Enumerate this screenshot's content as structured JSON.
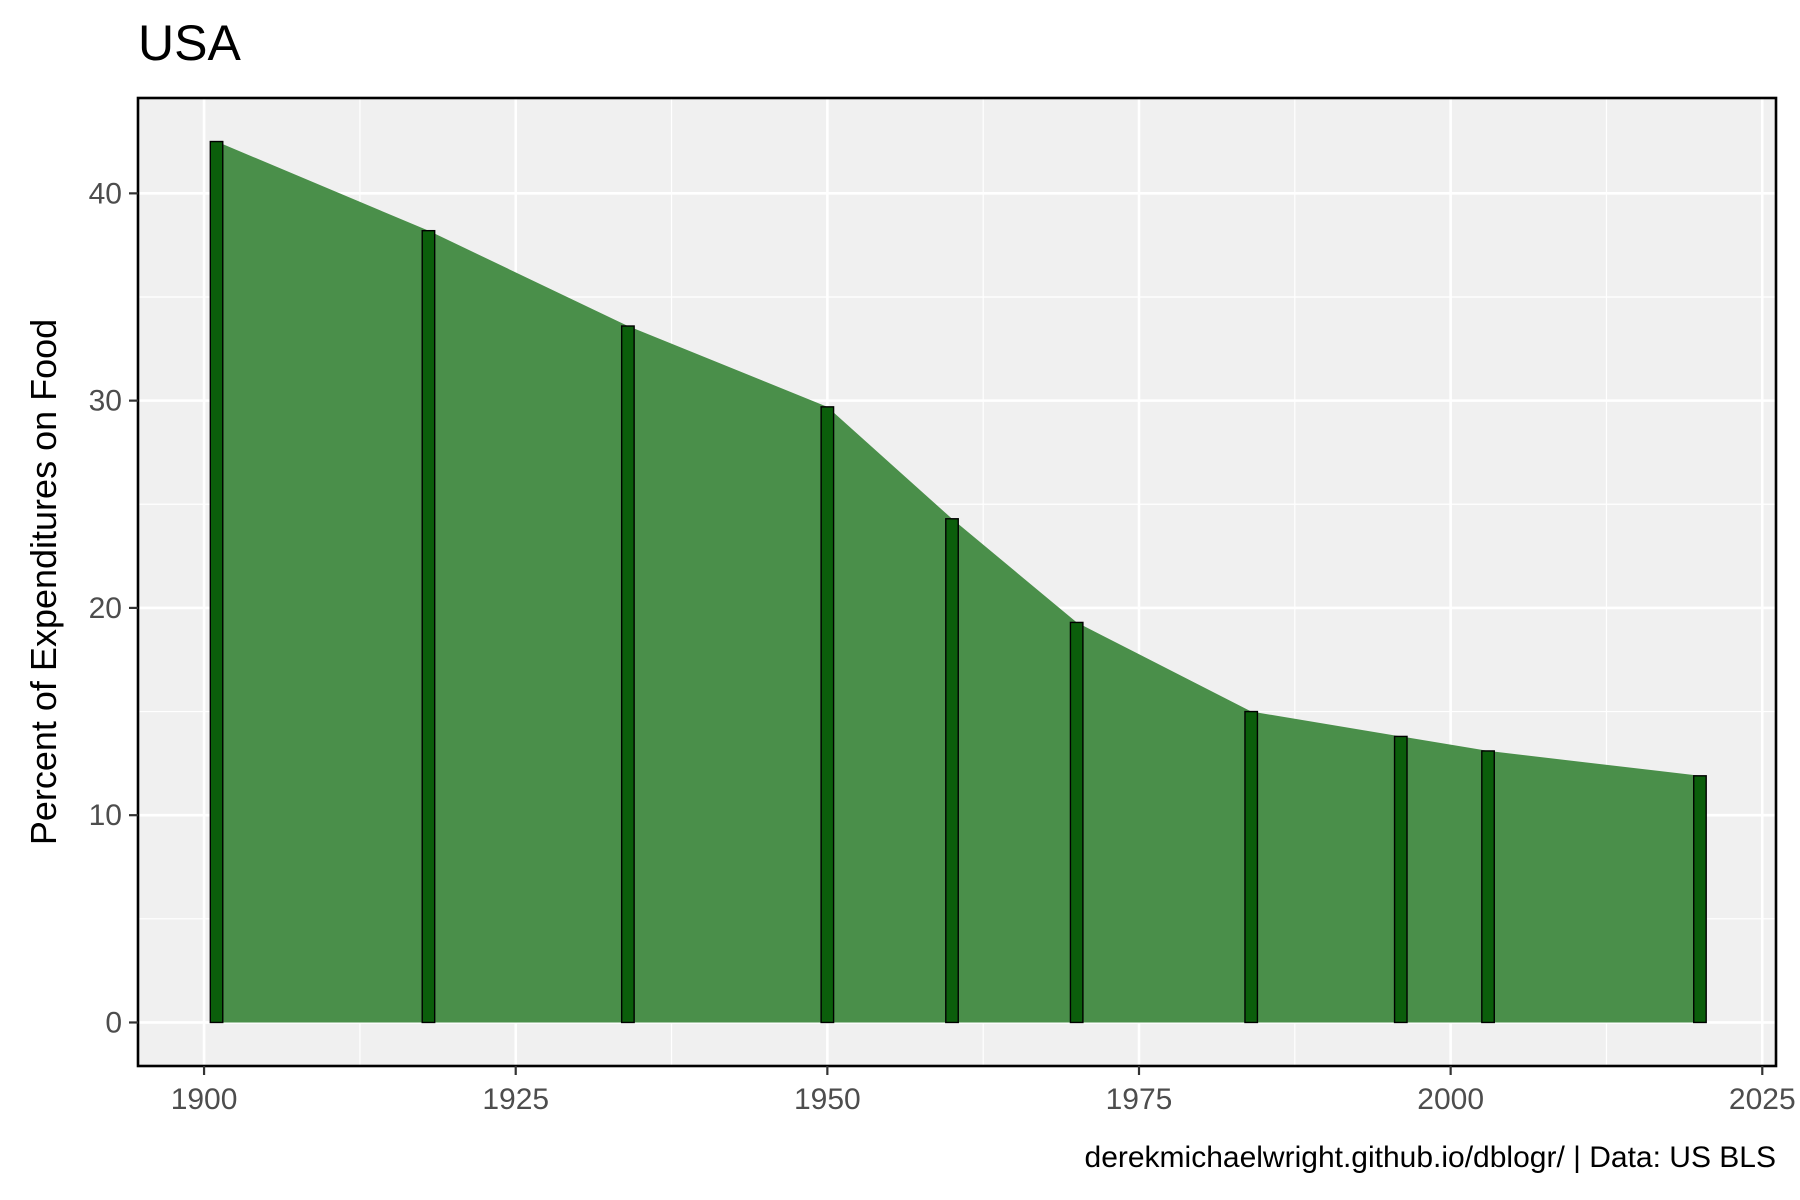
{
  "chart_data": {
    "type": "area",
    "title": "USA",
    "xlabel": "",
    "ylabel": "Percent of Expenditures on Food",
    "caption": "derekmichaelwright.github.io/dblogr/ | Data: US BLS",
    "x": [
      1901,
      1918,
      1934,
      1950,
      1960,
      1970,
      1984,
      1996,
      2003,
      2020
    ],
    "series": [
      {
        "values": [
          42.5,
          38.2,
          33.6,
          29.7,
          24.3,
          19.3,
          15.0,
          13.8,
          13.1,
          11.9
        ]
      }
    ],
    "xlim": [
      1894.7,
      2026.1
    ],
    "ylim": [
      -2.1,
      44.6
    ],
    "xticks": [
      1900,
      1925,
      1950,
      1975,
      2000,
      2025
    ],
    "yticks": [
      0,
      10,
      20,
      30,
      40
    ],
    "grid": true,
    "legend": "none",
    "colors": {
      "area_fill": "#4a8f4a",
      "bar_fill": "#0b5e0b",
      "bar_outline": "#000000",
      "panel_background": "#f0f0f0",
      "grid": "#ffffff"
    }
  }
}
